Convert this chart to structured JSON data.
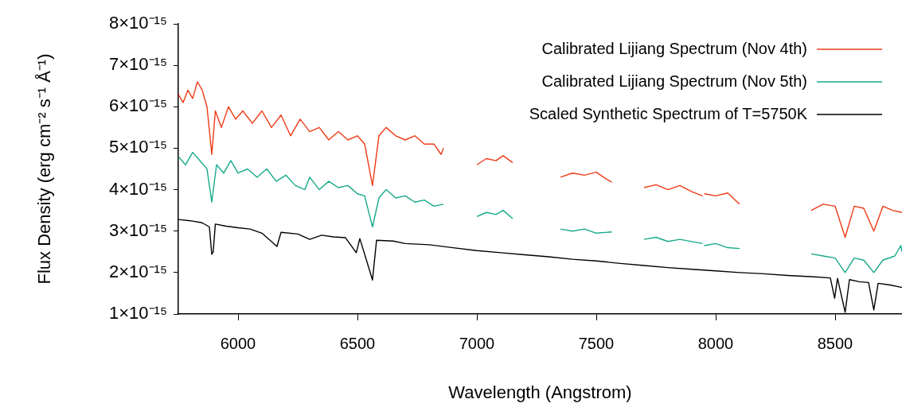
{
  "chart_data": {
    "type": "line",
    "xlabel": "Wavelength (Angstrom)",
    "ylabel": "Flux Density (erg cm⁻² s⁻¹ Å⁻¹)",
    "xlim": [
      5750,
      8780
    ],
    "xticks": [
      6000,
      6500,
      7000,
      7500,
      8000,
      8500
    ],
    "ylim": [
      1e-15,
      8e-15
    ],
    "yticks": [
      {
        "value": 1e-15,
        "label": "1×10⁻¹⁵"
      },
      {
        "value": 2e-15,
        "label": "2×10⁻¹⁵"
      },
      {
        "value": 3e-15,
        "label": "3×10⁻¹⁵"
      },
      {
        "value": 4e-15,
        "label": "4×10⁻¹⁵"
      },
      {
        "value": 5e-15,
        "label": "5×10⁻¹⁵"
      },
      {
        "value": 6e-15,
        "label": "6×10⁻¹⁵"
      },
      {
        "value": 7e-15,
        "label": "7×10⁻¹⁵"
      },
      {
        "value": 8e-15,
        "label": "8×10⁻¹⁵"
      }
    ],
    "grid": false,
    "legend": "top right",
    "series": [
      {
        "name": "Calibrated Lijiang Spectrum (Nov 4th)",
        "color": "#ee3b17",
        "x": [
          5750,
          5770,
          5790,
          5810,
          5830,
          5850,
          5870,
          5890,
          5905,
          5930,
          5960,
          5990,
          6020,
          6060,
          6100,
          6140,
          6180,
          6220,
          6260,
          6300,
          6340,
          6380,
          6420,
          6460,
          6500,
          6530,
          6563,
          6590,
          6620,
          6660,
          6700,
          6740,
          6780,
          6820,
          6850,
          6860,
          6930,
          7000,
          7040,
          7080,
          7110,
          7150,
          7250,
          7350,
          7400,
          7450,
          7500,
          7530,
          7565,
          7630,
          7700,
          7750,
          7800,
          7850,
          7900,
          7945,
          7948,
          7952,
          8000,
          8050,
          8100,
          8250,
          8400,
          8450,
          8500,
          8542,
          8580,
          8620,
          8662,
          8700,
          8740,
          8780
        ],
        "values": [
          6.3e-15,
          6.1e-15,
          6.4e-15,
          6.2e-15,
          6.6e-15,
          6.4e-15,
          6e-15,
          4.85e-15,
          5.9e-15,
          5.5e-15,
          6e-15,
          5.7e-15,
          5.9e-15,
          5.6e-15,
          5.9e-15,
          5.5e-15,
          5.8e-15,
          5.3e-15,
          5.7e-15,
          5.4e-15,
          5.5e-15,
          5.2e-15,
          5.4e-15,
          5.2e-15,
          5.3e-15,
          5.1e-15,
          4.1e-15,
          5.3e-15,
          5.5e-15,
          5.3e-15,
          5.2e-15,
          5.3e-15,
          5.1e-15,
          5.1e-15,
          4.85e-15,
          5e-15,
          null,
          4.6e-15,
          4.75e-15,
          4.7e-15,
          4.82e-15,
          4.65e-15,
          null,
          4.3e-15,
          4.4e-15,
          4.35e-15,
          4.42e-15,
          4.3e-15,
          4.18e-15,
          null,
          4.05e-15,
          4.12e-15,
          4e-15,
          4.1e-15,
          3.95e-15,
          3.85e-15,
          null,
          3.9e-15,
          3.85e-15,
          3.92e-15,
          3.65e-15,
          null,
          3.5e-15,
          3.65e-15,
          3.6e-15,
          2.85e-15,
          3.6e-15,
          3.55e-15,
          3e-15,
          3.6e-15,
          3.5e-15,
          3.45e-15
        ]
      },
      {
        "name": "Calibrated Lijiang Spectrum (Nov 5th)",
        "color": "#17a98a",
        "x": [
          5750,
          5780,
          5810,
          5840,
          5870,
          5890,
          5910,
          5940,
          5970,
          6000,
          6040,
          6080,
          6120,
          6160,
          6200,
          6240,
          6280,
          6300,
          6340,
          6380,
          6420,
          6460,
          6500,
          6530,
          6563,
          6590,
          6620,
          6660,
          6700,
          6740,
          6780,
          6820,
          6860,
          6930,
          7000,
          7040,
          7080,
          7110,
          7150,
          7250,
          7350,
          7400,
          7450,
          7500,
          7565,
          7630,
          7700,
          7750,
          7800,
          7850,
          7945,
          7948,
          7952,
          8000,
          8050,
          8100,
          8250,
          8400,
          8450,
          8500,
          8542,
          8580,
          8620,
          8662,
          8700,
          8750,
          8775,
          8780
        ],
        "values": [
          4.8e-15,
          4.6e-15,
          4.9e-15,
          4.7e-15,
          4.5e-15,
          3.7e-15,
          4.6e-15,
          4.4e-15,
          4.7e-15,
          4.4e-15,
          4.5e-15,
          4.3e-15,
          4.5e-15,
          4.2e-15,
          4.35e-15,
          4.1e-15,
          4e-15,
          4.3e-15,
          4e-15,
          4.2e-15,
          4.05e-15,
          4.1e-15,
          3.9e-15,
          3.85e-15,
          3.1e-15,
          3.8e-15,
          4e-15,
          3.8e-15,
          3.85e-15,
          3.7e-15,
          3.75e-15,
          3.6e-15,
          3.65e-15,
          null,
          3.35e-15,
          3.45e-15,
          3.4e-15,
          3.5e-15,
          3.3e-15,
          null,
          3.05e-15,
          3e-15,
          3.05e-15,
          2.95e-15,
          2.98e-15,
          null,
          2.8e-15,
          2.85e-15,
          2.75e-15,
          2.8e-15,
          2.7e-15,
          null,
          2.65e-15,
          2.7e-15,
          2.6e-15,
          2.58e-15,
          null,
          2.45e-15,
          2.4e-15,
          2.35e-15,
          2e-15,
          2.35e-15,
          2.3e-15,
          2e-15,
          2.3e-15,
          2.4e-15,
          2.65e-15,
          2.5e-15
        ]
      },
      {
        "name": "Scaled Synthetic Spectrum of T=5750K",
        "color": "#000000",
        "x": [
          5750,
          5800,
          5850,
          5880,
          5890,
          5896,
          5905,
          5950,
          6000,
          6050,
          6100,
          6163,
          6180,
          6250,
          6300,
          6350,
          6400,
          6450,
          6495,
          6510,
          6563,
          6580,
          6650,
          6700,
          6800,
          6900,
          7000,
          7100,
          7200,
          7300,
          7400,
          7500,
          7600,
          7700,
          7800,
          7900,
          8000,
          8100,
          8200,
          8300,
          8400,
          8480,
          8498,
          8510,
          8542,
          8560,
          8600,
          8640,
          8662,
          8680,
          8730,
          8780
        ],
        "values": [
          3.28e-15,
          3.25e-15,
          3.2e-15,
          3.1e-15,
          2.44e-15,
          2.5e-15,
          3.17e-15,
          3.12e-15,
          3.08e-15,
          3.05e-15,
          2.95e-15,
          2.63e-15,
          2.97e-15,
          2.93e-15,
          2.8e-15,
          2.9e-15,
          2.86e-15,
          2.84e-15,
          2.48e-15,
          2.82e-15,
          1.82e-15,
          2.78e-15,
          2.76e-15,
          2.7e-15,
          2.67e-15,
          2.6e-15,
          2.53e-15,
          2.48e-15,
          2.43e-15,
          2.38e-15,
          2.32e-15,
          2.28e-15,
          2.22e-15,
          2.17e-15,
          2.12e-15,
          2.08e-15,
          2.04e-15,
          2e-15,
          1.97e-15,
          1.93e-15,
          1.9e-15,
          1.87e-15,
          1.38e-15,
          1.86e-15,
          1.04e-15,
          1.83e-15,
          1.78e-15,
          1.76e-15,
          1.1e-15,
          1.74e-15,
          1.7e-15,
          1.64e-15
        ]
      }
    ]
  }
}
